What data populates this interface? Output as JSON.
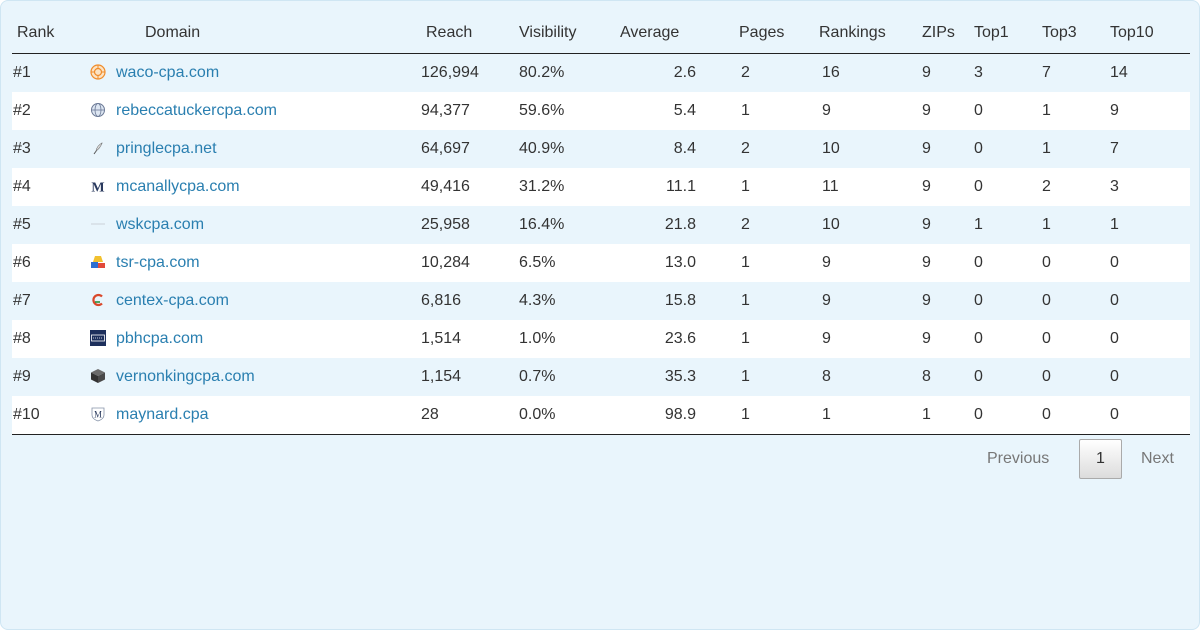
{
  "table": {
    "headers": {
      "rank": "Rank",
      "domain": "Domain",
      "reach": "Reach",
      "visibility": "Visibility",
      "average": "Average",
      "pages": "Pages",
      "rankings": "Rankings",
      "zips": "ZIPs",
      "top1": "Top1",
      "top3": "Top3",
      "top10": "Top10"
    },
    "rows": [
      {
        "rank": "#1",
        "favicon": "orange-sunburst-icon",
        "domain": "waco-cpa.com",
        "reach": "126,994",
        "visibility": "80.2%",
        "average": "2.6",
        "pages": "2",
        "rankings": "16",
        "zips": "9",
        "top1": "3",
        "top3": "7",
        "top10": "14"
      },
      {
        "rank": "#2",
        "favicon": "globe-icon",
        "domain": "rebeccatuckercpa.com",
        "reach": "94,377",
        "visibility": "59.6%",
        "average": "5.4",
        "pages": "1",
        "rankings": "9",
        "zips": "9",
        "top1": "0",
        "top3": "1",
        "top10": "9"
      },
      {
        "rank": "#3",
        "favicon": "feather-icon",
        "domain": "pringlecpa.net",
        "reach": "64,697",
        "visibility": "40.9%",
        "average": "8.4",
        "pages": "2",
        "rankings": "10",
        "zips": "9",
        "top1": "0",
        "top3": "1",
        "top10": "7"
      },
      {
        "rank": "#4",
        "favicon": "letter-m-icon",
        "domain": "mcanallycpa.com",
        "reach": "49,416",
        "visibility": "31.2%",
        "average": "11.1",
        "pages": "1",
        "rankings": "11",
        "zips": "9",
        "top1": "0",
        "top3": "2",
        "top10": "3"
      },
      {
        "rank": "#5",
        "favicon": "faint-line-icon",
        "domain": "wskcpa.com",
        "reach": "25,958",
        "visibility": "16.4%",
        "average": "21.8",
        "pages": "2",
        "rankings": "10",
        "zips": "9",
        "top1": "1",
        "top3": "1",
        "top10": "1"
      },
      {
        "rank": "#6",
        "favicon": "colorful-shapes-icon",
        "domain": "tsr-cpa.com",
        "reach": "10,284",
        "visibility": "6.5%",
        "average": "13.0",
        "pages": "1",
        "rankings": "9",
        "zips": "9",
        "top1": "0",
        "top3": "0",
        "top10": "0"
      },
      {
        "rank": "#7",
        "favicon": "letter-c-icon",
        "domain": "centex-cpa.com",
        "reach": "6,816",
        "visibility": "4.3%",
        "average": "15.8",
        "pages": "1",
        "rankings": "9",
        "zips": "9",
        "top1": "0",
        "top3": "0",
        "top10": "0"
      },
      {
        "rank": "#8",
        "favicon": "navy-badge-icon",
        "domain": "pbhcpa.com",
        "reach": "1,514",
        "visibility": "1.0%",
        "average": "23.6",
        "pages": "1",
        "rankings": "9",
        "zips": "9",
        "top1": "0",
        "top3": "0",
        "top10": "0"
      },
      {
        "rank": "#9",
        "favicon": "dark-cube-icon",
        "domain": "vernonkingcpa.com",
        "reach": "1,154",
        "visibility": "0.7%",
        "average": "35.3",
        "pages": "1",
        "rankings": "8",
        "zips": "8",
        "top1": "0",
        "top3": "0",
        "top10": "0"
      },
      {
        "rank": "#10",
        "favicon": "m-shield-icon",
        "domain": "maynard.cpa",
        "reach": "28",
        "visibility": "0.0%",
        "average": "98.9",
        "pages": "1",
        "rankings": "1",
        "zips": "1",
        "top1": "0",
        "top3": "0",
        "top10": "0"
      }
    ]
  },
  "pagination": {
    "previous_label": "Previous",
    "current_page": "1",
    "next_label": "Next"
  },
  "colors": {
    "panel_background": "#e9f5fc",
    "link": "#2a7fb0",
    "text": "#333333"
  }
}
